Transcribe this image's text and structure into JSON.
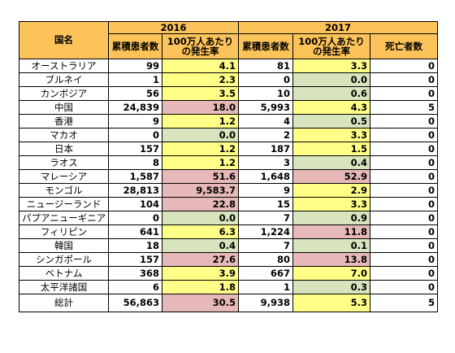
{
  "headers": {
    "country": "国名",
    "year1": "2016",
    "year2": "2017",
    "cumulative": "累積患者数",
    "rate": "100万人あたりの発生率",
    "deaths": "死亡者数"
  },
  "rows": [
    {
      "name": "オーストラリア",
      "c16": "99",
      "r16": "4.1",
      "k16": "y",
      "c17": "81",
      "r17": "3.3",
      "k17": "y",
      "d": "0"
    },
    {
      "name": "ブルネイ",
      "c16": "1",
      "r16": "2.3",
      "k16": "y",
      "c17": "0",
      "r17": "0.0",
      "k17": "g",
      "d": "0"
    },
    {
      "name": "カンボジア",
      "c16": "56",
      "r16": "3.5",
      "k16": "y",
      "c17": "10",
      "r17": "0.6",
      "k17": "g",
      "d": "0"
    },
    {
      "name": "中国",
      "c16": "24,839",
      "r16": "18.0",
      "k16": "r",
      "c17": "5,993",
      "r17": "4.3",
      "k17": "y",
      "d": "5"
    },
    {
      "name": "香港",
      "c16": "9",
      "r16": "1.2",
      "k16": "y",
      "c17": "4",
      "r17": "0.5",
      "k17": "g",
      "d": "0"
    },
    {
      "name": "マカオ",
      "c16": "0",
      "r16": "0.0",
      "k16": "g",
      "c17": "2",
      "r17": "3.3",
      "k17": "y",
      "d": "0"
    },
    {
      "name": "日本",
      "c16": "157",
      "r16": "1.2",
      "k16": "y",
      "c17": "187",
      "r17": "1.5",
      "k17": "y",
      "d": "0"
    },
    {
      "name": "ラオス",
      "c16": "8",
      "r16": "1.2",
      "k16": "y",
      "c17": "3",
      "r17": "0.4",
      "k17": "g",
      "d": "0"
    },
    {
      "name": "マレーシア",
      "c16": "1,587",
      "r16": "51.6",
      "k16": "r",
      "c17": "1,648",
      "r17": "52.9",
      "k17": "r",
      "d": "0"
    },
    {
      "name": "モンゴル",
      "c16": "28,813",
      "r16": "9,583.7",
      "k16": "r",
      "c17": "9",
      "r17": "2.9",
      "k17": "y",
      "d": "0"
    },
    {
      "name": "ニュージーランド",
      "c16": "104",
      "r16": "22.8",
      "k16": "r",
      "c17": "15",
      "r17": "3.3",
      "k17": "y",
      "d": "0"
    },
    {
      "name": "パプアニューギニア",
      "c16": "0",
      "r16": "0.0",
      "k16": "g",
      "c17": "7",
      "r17": "0.9",
      "k17": "g",
      "d": "0"
    },
    {
      "name": "フィリピン",
      "c16": "641",
      "r16": "6.3",
      "k16": "y",
      "c17": "1,224",
      "r17": "11.8",
      "k17": "r",
      "d": "0"
    },
    {
      "name": "韓国",
      "c16": "18",
      "r16": "0.4",
      "k16": "g",
      "c17": "7",
      "r17": "0.1",
      "k17": "g",
      "d": "0"
    },
    {
      "name": "シンガポール",
      "c16": "157",
      "r16": "27.6",
      "k16": "r",
      "c17": "80",
      "r17": "13.8",
      "k17": "r",
      "d": "0"
    },
    {
      "name": "ベトナム",
      "c16": "368",
      "r16": "3.9",
      "k16": "y",
      "c17": "667",
      "r17": "7.0",
      "k17": "y",
      "d": "0"
    },
    {
      "name": "太平洋諸国",
      "c16": "6",
      "r16": "1.8",
      "k16": "y",
      "c17": "1",
      "r17": "0.3",
      "k17": "g",
      "d": "0"
    }
  ],
  "total": {
    "name": "総計",
    "c16": "56,863",
    "r16": "30.5",
    "k16": "r",
    "c17": "9,938",
    "r17": "5.3",
    "k17": "y",
    "d": "5"
  },
  "colors": {
    "header": "#fbc35a",
    "yellow": "#ffff88",
    "green": "#d7e4bd",
    "red": "#e6b9b8"
  }
}
